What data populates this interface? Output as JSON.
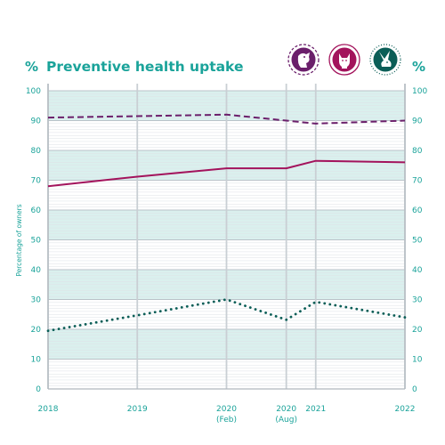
{
  "chart_data": {
    "type": "line",
    "title": "Preventive health uptake",
    "unit_symbol": "%",
    "ylabel": "Percentage of owners",
    "xlabel": "",
    "ylim": [
      0,
      100
    ],
    "yticks": [
      0,
      10,
      20,
      30,
      40,
      50,
      60,
      70,
      80,
      90,
      100
    ],
    "x_categories": [
      {
        "label": "2018",
        "sublabel": "",
        "pos": 2018.0
      },
      {
        "label": "2019",
        "sublabel": "",
        "pos": 2019.0
      },
      {
        "label": "2020",
        "sublabel": "(Feb)",
        "pos": 2020.0
      },
      {
        "label": "2020",
        "sublabel": "(Aug)",
        "pos": 2020.67
      },
      {
        "label": "2021",
        "sublabel": "",
        "pos": 2021.0
      },
      {
        "label": "2022",
        "sublabel": "",
        "pos": 2022.0
      }
    ],
    "grid": true,
    "series": [
      {
        "id": "dog",
        "icon": "dog-icon",
        "color": "#6b1f6b",
        "style": "dashed",
        "values": [
          91,
          91.5,
          92,
          90,
          89,
          90
        ]
      },
      {
        "id": "cat",
        "icon": "cat-icon",
        "color": "#a3135c",
        "style": "solid",
        "values": [
          68,
          71.2,
          74,
          74,
          76.5,
          76
        ]
      },
      {
        "id": "rabbit",
        "icon": "rabbit-icon",
        "color": "#0b5e57",
        "style": "dotted",
        "values": [
          19.5,
          24.7,
          30,
          23.2,
          29.2,
          24
        ]
      }
    ]
  }
}
